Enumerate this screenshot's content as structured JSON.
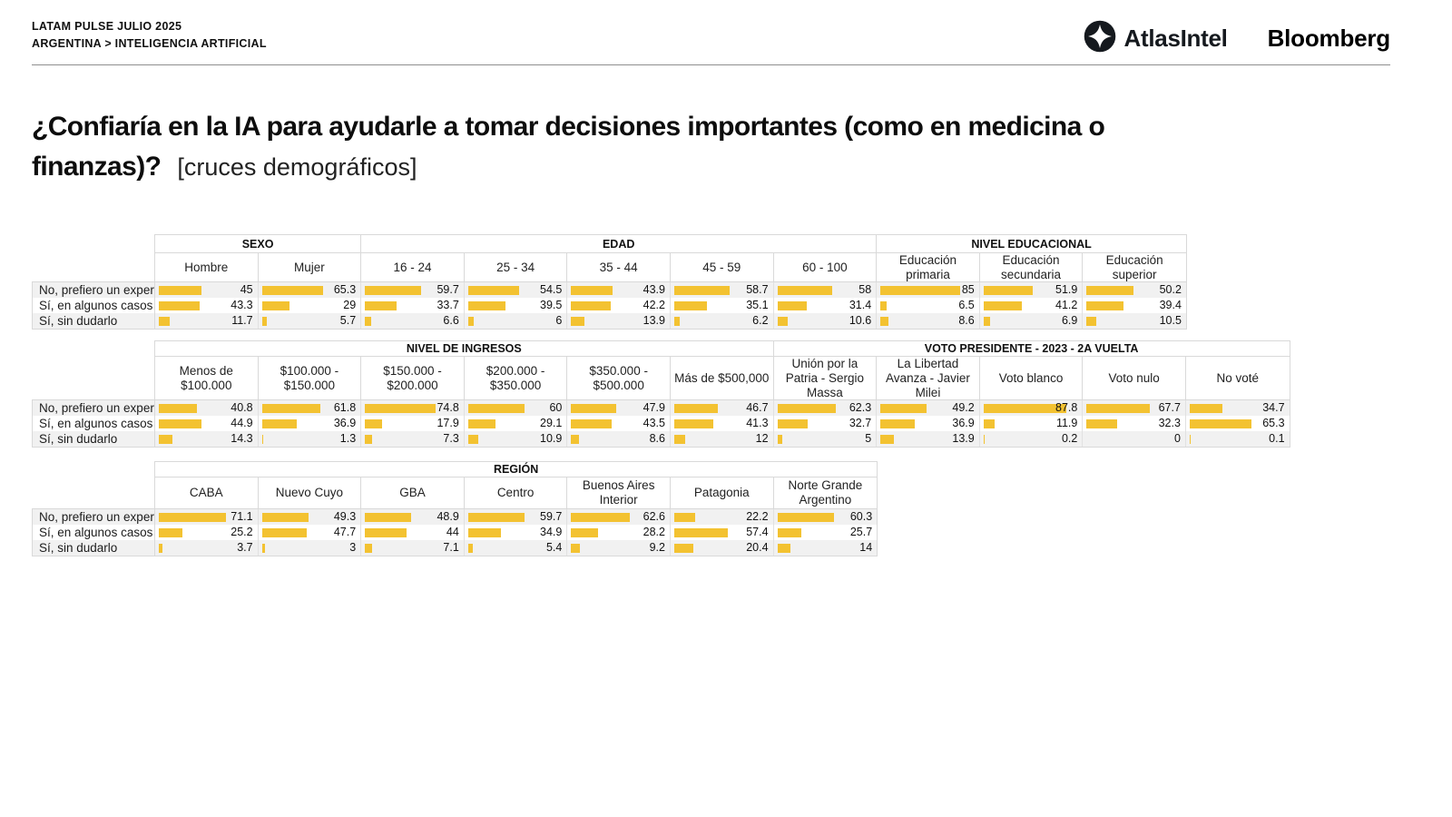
{
  "header": {
    "line1": "LATAM PULSE JULIO 2025",
    "line2": "ARGENTINA > INTELIGENCIA ARTIFICIAL",
    "brand_atlas": "AtlasIntel",
    "brand_bloomberg": "Bloomberg"
  },
  "title": {
    "main": "¿Confiaría en la IA para ayudarle a tomar decisiones importantes (como en medicina o finanzas)?",
    "sub": "[cruces demográficos]"
  },
  "colors": {
    "bar": "#F3C231",
    "stripe": "#F1F1F1",
    "border": "#D9D9D9"
  },
  "chart_data": [
    {
      "type": "bar",
      "orientation": "horizontal",
      "value_range": [
        0,
        100
      ],
      "row_labels": [
        "No, prefiero un exper",
        "Sí, en algunos casos",
        "Sí, sin dudarlo"
      ],
      "groups": [
        {
          "label": "SEXO",
          "columns": [
            {
              "label": "Hombre",
              "values": [
                45,
                43.3,
                11.7
              ]
            },
            {
              "label": "Mujer",
              "values": [
                65.3,
                29,
                5.7
              ]
            }
          ]
        },
        {
          "label": "EDAD",
          "columns": [
            {
              "label": "16 - 24",
              "values": [
                59.7,
                33.7,
                6.6
              ]
            },
            {
              "label": "25 - 34",
              "values": [
                54.5,
                39.5,
                6
              ]
            },
            {
              "label": "35 - 44",
              "values": [
                43.9,
                42.2,
                13.9
              ]
            },
            {
              "label": "45 - 59",
              "values": [
                58.7,
                35.1,
                6.2
              ]
            },
            {
              "label": "60 - 100",
              "values": [
                58,
                31.4,
                10.6
              ]
            }
          ]
        },
        {
          "label": "NIVEL EDUCACIONAL",
          "columns": [
            {
              "label": "Educación primaria",
              "values": [
                85,
                6.5,
                8.6
              ]
            },
            {
              "label": "Educación secundaria",
              "values": [
                51.9,
                41.2,
                6.9
              ]
            },
            {
              "label": "Educación superior",
              "values": [
                50.2,
                39.4,
                10.5
              ]
            }
          ]
        }
      ]
    },
    {
      "type": "bar",
      "orientation": "horizontal",
      "value_range": [
        0,
        100
      ],
      "row_labels": [
        "No, prefiero un exper",
        "Sí, en algunos casos",
        "Sí, sin dudarlo"
      ],
      "groups": [
        {
          "label": "NIVEL DE INGRESOS",
          "columns": [
            {
              "label": "Menos de $100.000",
              "values": [
                40.8,
                44.9,
                14.3
              ]
            },
            {
              "label": "$100.000 - $150.000",
              "values": [
                61.8,
                36.9,
                1.3
              ]
            },
            {
              "label": "$150.000 - $200.000",
              "values": [
                74.8,
                17.9,
                7.3
              ]
            },
            {
              "label": "$200.000 - $350.000",
              "values": [
                60,
                29.1,
                10.9
              ]
            },
            {
              "label": "$350.000 - $500.000",
              "values": [
                47.9,
                43.5,
                8.6
              ]
            },
            {
              "label": "Más de $500,000",
              "values": [
                46.7,
                41.3,
                12
              ]
            }
          ]
        },
        {
          "label": "VOTO PRESIDENTE - 2023 - 2A VUELTA",
          "columns": [
            {
              "label": "Unión por la Patria - Sergio Massa",
              "values": [
                62.3,
                32.7,
                5
              ]
            },
            {
              "label": "La Libertad Avanza - Javier Milei",
              "values": [
                49.2,
                36.9,
                13.9
              ]
            },
            {
              "label": "Voto blanco",
              "values": [
                87.8,
                11.9,
                0.2
              ]
            },
            {
              "label": "Voto nulo",
              "values": [
                67.7,
                32.3,
                0
              ]
            },
            {
              "label": "No voté",
              "values": [
                34.7,
                65.3,
                0.1
              ]
            }
          ]
        }
      ]
    },
    {
      "type": "bar",
      "orientation": "horizontal",
      "value_range": [
        0,
        100
      ],
      "row_labels": [
        "No, prefiero un exper",
        "Sí, en algunos casos",
        "Sí, sin dudarlo"
      ],
      "groups": [
        {
          "label": "REGIÓN",
          "columns": [
            {
              "label": "CABA",
              "values": [
                71.1,
                25.2,
                3.7
              ]
            },
            {
              "label": "Nuevo Cuyo",
              "values": [
                49.3,
                47.7,
                3
              ]
            },
            {
              "label": "GBA",
              "values": [
                48.9,
                44,
                7.1
              ]
            },
            {
              "label": "Centro",
              "values": [
                59.7,
                34.9,
                5.4
              ]
            },
            {
              "label": "Buenos Aires Interior",
              "values": [
                62.6,
                28.2,
                9.2
              ]
            },
            {
              "label": "Patagonia",
              "values": [
                22.2,
                57.4,
                20.4
              ]
            },
            {
              "label": "Norte Grande Argentino",
              "values": [
                60.3,
                25.7,
                14
              ]
            }
          ]
        }
      ]
    }
  ]
}
